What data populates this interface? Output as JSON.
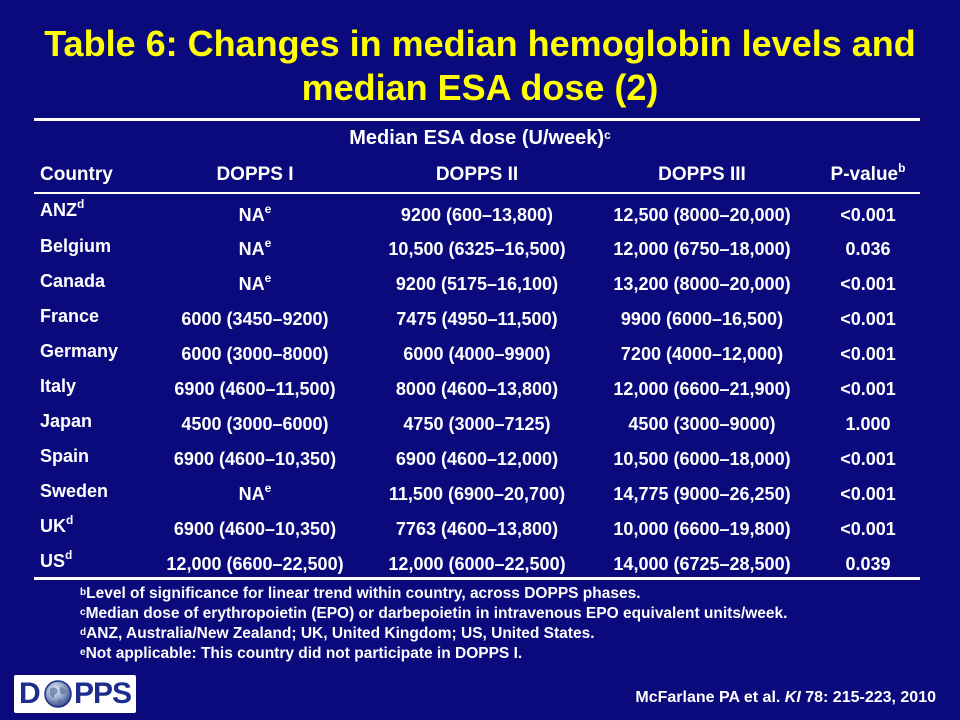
{
  "title": {
    "line1": "Table 6:  Changes in median hemoglobin levels and",
    "line2": "median ESA dose (2)"
  },
  "table": {
    "group_header": "Median ESA dose (U/week)",
    "group_header_sup": "c",
    "columns": [
      {
        "label": "Country",
        "sup": ""
      },
      {
        "label": "DOPPS I",
        "sup": ""
      },
      {
        "label": "DOPPS II",
        "sup": ""
      },
      {
        "label": "DOPPS III",
        "sup": ""
      },
      {
        "label": "P-value",
        "sup": "b"
      }
    ],
    "rows": [
      {
        "country": "ANZ",
        "country_sup": "d",
        "dopps1": "NA",
        "dopps1_sup": "e",
        "dopps2": "9200 (600–13,800)",
        "dopps3": "12,500 (8000–20,000)",
        "p": "<0.001"
      },
      {
        "country": "Belgium",
        "country_sup": "",
        "dopps1": "NA",
        "dopps1_sup": "e",
        "dopps2": "10,500 (6325–16,500)",
        "dopps3": "12,000 (6750–18,000)",
        "p": "0.036"
      },
      {
        "country": "Canada",
        "country_sup": "",
        "dopps1": "NA",
        "dopps1_sup": "e",
        "dopps2": "9200 (5175–16,100)",
        "dopps3": "13,200 (8000–20,000)",
        "p": "<0.001"
      },
      {
        "country": "France",
        "country_sup": "",
        "dopps1": "6000 (3450–9200)",
        "dopps1_sup": "",
        "dopps2": "7475 (4950–11,500)",
        "dopps3": "9900 (6000–16,500)",
        "p": "<0.001"
      },
      {
        "country": "Germany",
        "country_sup": "",
        "dopps1": "6000 (3000–8000)",
        "dopps1_sup": "",
        "dopps2": "6000 (4000–9900)",
        "dopps3": "7200 (4000–12,000)",
        "p": "<0.001"
      },
      {
        "country": "Italy",
        "country_sup": "",
        "dopps1": "6900 (4600–11,500)",
        "dopps1_sup": "",
        "dopps2": "8000 (4600–13,800)",
        "dopps3": "12,000 (6600–21,900)",
        "p": "<0.001"
      },
      {
        "country": "Japan",
        "country_sup": "",
        "dopps1": "4500 (3000–6000)",
        "dopps1_sup": "",
        "dopps2": "4750 (3000–7125)",
        "dopps3": "4500 (3000–9000)",
        "p": "1.000"
      },
      {
        "country": "Spain",
        "country_sup": "",
        "dopps1": "6900 (4600–10,350)",
        "dopps1_sup": "",
        "dopps2": "6900 (4600–12,000)",
        "dopps3": "10,500 (6000–18,000)",
        "p": "<0.001"
      },
      {
        "country": "Sweden",
        "country_sup": "",
        "dopps1": "NA",
        "dopps1_sup": "e",
        "dopps2": "11,500 (6900–20,700)",
        "dopps3": "14,775 (9000–26,250)",
        "p": "<0.001"
      },
      {
        "country": "UK",
        "country_sup": "d",
        "dopps1": "6900 (4600–10,350)",
        "dopps1_sup": "",
        "dopps2": "7763 (4600–13,800)",
        "dopps3": "10,000 (6600–19,800)",
        "p": "<0.001"
      },
      {
        "country": "US",
        "country_sup": "d",
        "dopps1": "12,000 (6600–22,500)",
        "dopps1_sup": "",
        "dopps2": "12,000 (6000–22,500)",
        "dopps3": "14,000 (6725–28,500)",
        "p": "0.039"
      }
    ]
  },
  "footnotes": [
    {
      "mark": "b",
      "text": "Level of significance for linear trend within country, across DOPPS phases."
    },
    {
      "mark": "c",
      "text": "Median dose of erythropoietin (EPO) or darbepoietin in intravenous EPO equivalent units/week."
    },
    {
      "mark": "d",
      "text": "ANZ, Australia/New Zealand; UK, United Kingdom; US, United States."
    },
    {
      "mark": "e",
      "text": "Not applicable: This country did not participate in DOPPS I."
    }
  ],
  "logo": {
    "text_left": "D",
    "text_right": "PPS",
    "globe_icon": "globe-icon"
  },
  "citation": {
    "authors": "McFarlane PA et al. ",
    "journal": "KI",
    "details": " 78: 215-223, 2010"
  },
  "colors": {
    "background": "#0a0a7c",
    "title": "#ffff00",
    "text": "#ffffff",
    "logo_text": "#1c2d8c"
  }
}
